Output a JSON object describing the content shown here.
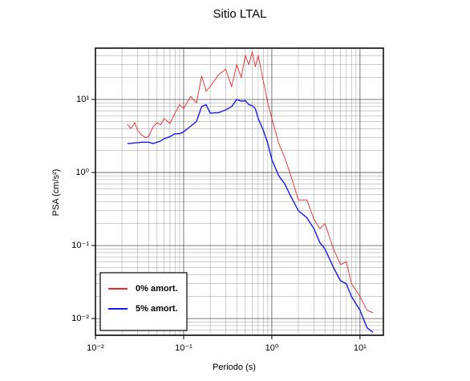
{
  "chart_data": {
    "type": "line",
    "title": "Sitio LTAL",
    "x_label": "Periodo (s)",
    "y_label": "PSA (cm/s²)",
    "x": [
      0.023,
      0.025,
      0.028,
      0.03,
      0.033,
      0.037,
      0.04,
      0.045,
      0.05,
      0.055,
      0.06,
      0.07,
      0.08,
      0.09,
      0.1,
      0.12,
      0.14,
      0.16,
      0.18,
      0.2,
      0.25,
      0.3,
      0.35,
      0.4,
      0.45,
      0.5,
      0.55,
      0.6,
      0.65,
      0.7,
      0.8,
      0.9,
      1.0,
      1.2,
      1.4,
      1.6,
      2.0,
      2.5,
      3.0,
      3.5,
      4,
      5,
      6,
      7,
      8,
      10,
      12,
      14
    ],
    "series": [
      {
        "name": "0% amort.",
        "color": "#e8292b",
        "values": [
          4.6,
          4.0,
          4.8,
          3.8,
          3.3,
          3.0,
          3.1,
          4.2,
          4.8,
          4.5,
          5.5,
          4.7,
          6.5,
          8.5,
          7.5,
          11,
          9,
          21,
          13,
          15,
          22,
          26,
          15,
          30,
          20,
          40,
          30,
          45,
          28,
          40,
          18,
          9,
          5.5,
          2.5,
          1.6,
          1.0,
          0.42,
          0.42,
          0.23,
          0.17,
          0.2,
          0.09,
          0.055,
          0.06,
          0.03,
          0.02,
          0.013,
          0.012
        ]
      },
      {
        "name": "5% amort.",
        "color": "#1a1aee",
        "values": [
          2.5,
          2.5,
          2.55,
          2.55,
          2.6,
          2.6,
          2.6,
          2.5,
          2.6,
          2.7,
          2.9,
          3.1,
          3.4,
          3.4,
          3.6,
          4.3,
          5.0,
          8,
          8.5,
          6.5,
          6.6,
          7.2,
          8,
          10,
          9.5,
          9.6,
          8.5,
          8.2,
          7.5,
          5.5,
          3.8,
          2.5,
          1.5,
          0.9,
          0.7,
          0.5,
          0.3,
          0.24,
          0.17,
          0.11,
          0.09,
          0.05,
          0.033,
          0.03,
          0.02,
          0.013,
          0.0075,
          0.0065
        ]
      }
    ],
    "xscale": "log",
    "yscale": "log",
    "xlim": [
      0.01,
      18.4
    ],
    "ylim": [
      0.0059,
      50.5
    ],
    "xticks": [
      {
        "value": 0.01,
        "label": "10⁻²"
      },
      {
        "value": 0.1,
        "label": "10⁻¹"
      },
      {
        "value": 1,
        "label": "10⁰"
      },
      {
        "value": 10,
        "label": "10¹"
      }
    ],
    "yticks": [
      {
        "value": 0.01,
        "label": "10⁻²"
      },
      {
        "value": 0.1,
        "label": "10⁻¹"
      },
      {
        "value": 1,
        "label": "10⁰"
      },
      {
        "value": 10,
        "label": "10¹"
      }
    ],
    "grid": true,
    "legend": "lower left"
  }
}
